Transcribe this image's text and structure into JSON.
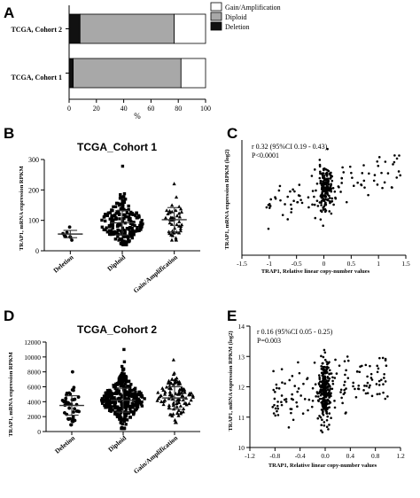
{
  "panels": {
    "A": "A",
    "B": "B",
    "C": "C",
    "D": "D",
    "E": "E"
  },
  "colors": {
    "gain": "#ffffff",
    "diploid": "#a8a8a8",
    "deletion": "#111111",
    "axis": "#000000"
  },
  "chart_data": [
    {
      "id": "A",
      "type": "bar",
      "orientation": "horizontal",
      "stacked": true,
      "categories": [
        "TCGA, Cohort 2",
        "TCGA, Cohort 1"
      ],
      "series": [
        {
          "name": "Deletion",
          "values": [
            8,
            3
          ]
        },
        {
          "name": "Diploid",
          "values": [
            69,
            79
          ]
        },
        {
          "name": "Gain/Amplification",
          "values": [
            23,
            18
          ]
        }
      ],
      "xlabel": "%",
      "xlim": [
        0,
        100
      ],
      "xticks": [
        "0",
        "20",
        "40",
        "60",
        "80",
        "100"
      ],
      "legend": "top-right"
    },
    {
      "id": "B",
      "type": "scatter",
      "title": "TCGA_Cohort 1",
      "ylabel": "TRAP1, mRNA expression RPKM",
      "ylim": [
        0,
        300
      ],
      "yticks": [
        "0",
        "100",
        "200",
        "300"
      ],
      "categories": [
        "Deletion",
        "Diploid",
        "Gain/Amplification"
      ],
      "groups": [
        {
          "name": "Deletion",
          "marker": "circle",
          "mean": 55,
          "sd": 12,
          "n": 8,
          "min": 35,
          "max": 78
        },
        {
          "name": "Diploid",
          "marker": "square",
          "mean": 92,
          "sd": 40,
          "n": 210,
          "min": 20,
          "max": 278
        },
        {
          "name": "Gain/Amplification",
          "marker": "triangle",
          "mean": 102,
          "sd": 40,
          "n": 45,
          "min": 35,
          "max": 220
        }
      ]
    },
    {
      "id": "C",
      "type": "scatter",
      "ylabel": "TRAP1, mRNA expression RPKM (log2)",
      "xlabel": "TRAP1, Relative linear copy-number values",
      "xlim": [
        -1.5,
        1.5
      ],
      "ylim": [
        4,
        8
      ],
      "xticks": [
        "-1.5",
        "-1",
        "-0.5",
        "0",
        "0.5",
        "1",
        "1.5"
      ],
      "annotation": [
        "r 0.32 (95%CI 0.19 - 0.43)",
        "P<0.0001"
      ],
      "points": {
        "n": 260,
        "cluster_center": [
          0.03,
          6.3
        ],
        "cluster_sd": [
          0.06,
          0.45
        ],
        "spread_x": [
          -1.05,
          1.4
        ],
        "slope": 0.6
      }
    },
    {
      "id": "D",
      "type": "scatter",
      "title": "TCGA_Cohort 2",
      "ylabel": "TRAP1, mRNA expression RPKM",
      "ylim": [
        0,
        12000
      ],
      "yticks": [
        "0",
        "2000",
        "4000",
        "6000",
        "8000",
        "10000",
        "12000"
      ],
      "categories": [
        "Deletion",
        "Diploid",
        "Gain/Amplification"
      ],
      "groups": [
        {
          "name": "Deletion",
          "marker": "circle",
          "mean": 3500,
          "sd": 1300,
          "n": 40,
          "min": 900,
          "max": 8000
        },
        {
          "name": "Diploid",
          "marker": "square",
          "mean": 4200,
          "sd": 1600,
          "n": 330,
          "min": 400,
          "max": 11000
        },
        {
          "name": "Gain/Amplification",
          "marker": "triangle",
          "mean": 4500,
          "sd": 1500,
          "n": 110,
          "min": 1200,
          "max": 9600
        }
      ]
    },
    {
      "id": "E",
      "type": "scatter",
      "ylabel": "TRAP1, mRNA expression RPKM (log2)",
      "xlabel": "TRAP1, Relative linear copy-number values",
      "xlim": [
        -1.2,
        1.2
      ],
      "ylim": [
        10,
        14
      ],
      "xticks": [
        "-1.2",
        "-0.8",
        "-0.4",
        "0.0",
        "0.4",
        "0.8",
        "1.2"
      ],
      "yticks": [
        "10",
        "11",
        "12",
        "13",
        "14"
      ],
      "annotation": [
        "r 0.16 (95%CI 0.05 - 0.25)",
        "P=0.003"
      ],
      "points": {
        "n": 380,
        "cluster_center": [
          0.0,
          11.9
        ],
        "cluster_sd": [
          0.05,
          0.55
        ],
        "spread_x": [
          -0.85,
          1.0
        ],
        "slope": 0.4
      }
    }
  ]
}
